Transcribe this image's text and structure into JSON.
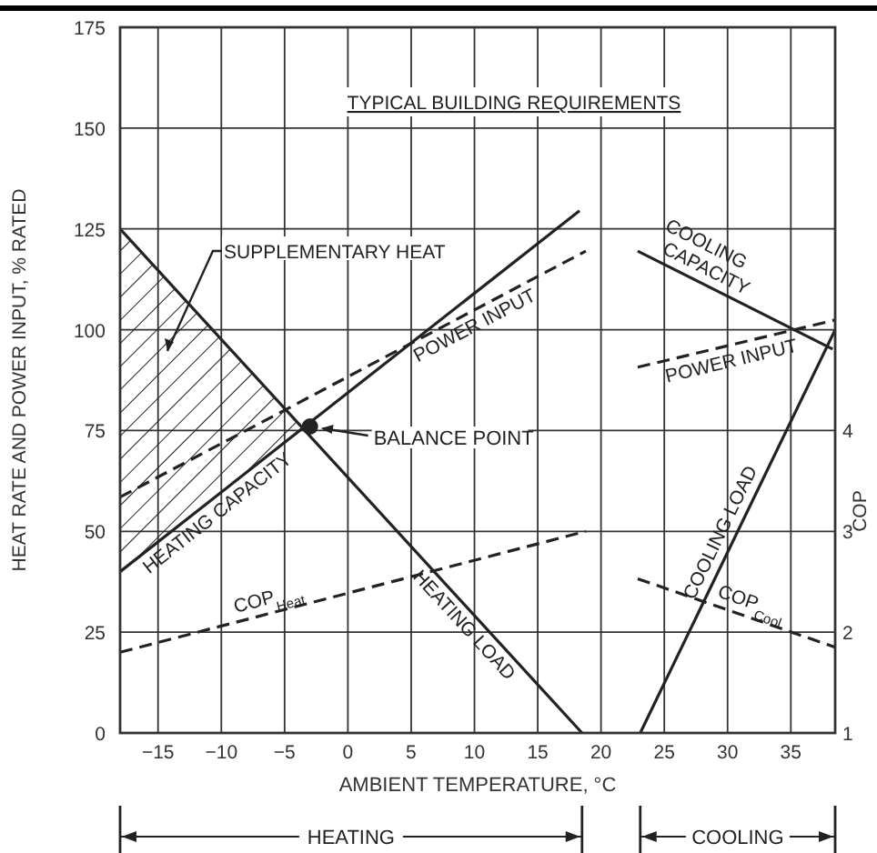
{
  "chart_data": {
    "type": "line",
    "title": "TYPICAL BUILDING REQUIREMENTS",
    "xlabel": "AMBIENT TEMPERATURE, °C",
    "ylabel": "HEAT RATE AND POWER INPUT, % RATED",
    "y2label": "COP",
    "xlim": [
      -18,
      38.5
    ],
    "xticks": [
      {
        "value": -15,
        "label": "−15"
      },
      {
        "value": -10,
        "label": "−10"
      },
      {
        "value": -5,
        "label": "−5"
      },
      0,
      5,
      10,
      15,
      20,
      25,
      30,
      35
    ],
    "ylim": [
      0,
      175
    ],
    "yticks": [
      0,
      25,
      50,
      75,
      100,
      125,
      150,
      175
    ],
    "y2lim": [
      1,
      8
    ],
    "y2ticks": [
      1,
      2,
      3,
      4
    ],
    "grid": true,
    "series": [
      {
        "name": "HEATING LOAD",
        "color": "#222222",
        "line_style": "solid",
        "x": [
          -18,
          18.5
        ],
        "values": [
          125,
          0
        ]
      },
      {
        "name": "HEATING CAPACITY",
        "color": "#222222",
        "line_style": "solid",
        "x": [
          -18,
          18.3
        ],
        "values": [
          40,
          129.5
        ]
      },
      {
        "name": "POWER INPUT",
        "color": "#222222",
        "line_style": "dashed",
        "x": [
          -18,
          18.8
        ],
        "values": [
          58.5,
          119.5
        ]
      },
      {
        "name": "COP$_{Heat}$",
        "axis": "y2",
        "color": "#222222",
        "line_style": "dashed",
        "x": [
          -18,
          18.8
        ],
        "values": [
          1.8,
          3.0
        ]
      },
      {
        "name": "COOLING CAPACITY",
        "color": "#222222",
        "line_style": "solid",
        "x": [
          22.9,
          38.3
        ],
        "values": [
          119.5,
          95.2
        ]
      },
      {
        "name": "POWER INPUT",
        "color": "#222222",
        "line_style": "dashed",
        "x": [
          22.9,
          38.5
        ],
        "values": [
          90.7,
          102.4
        ]
      },
      {
        "name": "COOLING LOAD",
        "color": "#222222",
        "line_style": "solid",
        "x": [
          23.1,
          38.5
        ],
        "values": [
          0,
          100
        ]
      },
      {
        "name": "COP$_{Cool}$",
        "axis": "y2",
        "color": "#222222",
        "line_style": "dashed",
        "x": [
          22.9,
          38.5
        ],
        "values": [
          2.53,
          1.85
        ]
      },
      {
        "type": "scatter",
        "color": "#222222",
        "marker": "circle",
        "x": [
          -3
        ],
        "values": [
          76
        ]
      }
    ],
    "annotations": [
      "SUPPLEMENTARY HEAT",
      "BALANCE POINT",
      "HEATING",
      "COOLING"
    ]
  }
}
